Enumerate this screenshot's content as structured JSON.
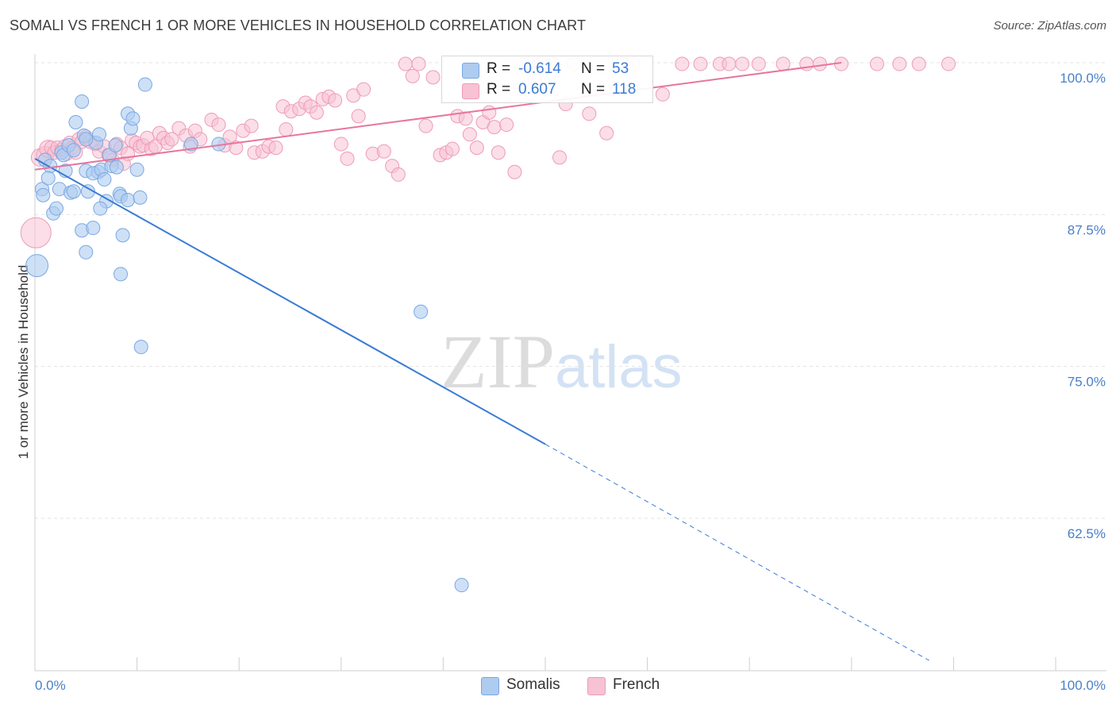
{
  "title": "SOMALI VS FRENCH 1 OR MORE VEHICLES IN HOUSEHOLD CORRELATION CHART",
  "source": "Source: ZipAtlas.com",
  "watermark": {
    "zip": "ZIP",
    "atlas": "atlas"
  },
  "legend_top": {
    "rows": [
      {
        "r_label": "R =",
        "r_value": "-0.614",
        "n_label": "N =",
        "n_value": "53"
      },
      {
        "r_label": "R =",
        "r_value": "0.607",
        "n_label": "N =",
        "n_value": "118"
      }
    ]
  },
  "legend_bottom": [
    "Somalis",
    "French"
  ],
  "colors": {
    "somalis_fill": "#aecbf0",
    "somalis_stroke": "#7aa8e3",
    "somalis_line": "#3a7bd5",
    "french_fill": "#f7c2d3",
    "french_stroke": "#ee9bb8",
    "french_line": "#e8769a",
    "tick_label": "#4a7fc9",
    "grid": "#e3e3e3"
  },
  "chart_data": {
    "type": "scatter",
    "title": "SOMALI VS FRENCH 1 OR MORE VEHICLES IN HOUSEHOLD CORRELATION CHART",
    "xlabel": "",
    "ylabel": "1 or more Vehicles in Household",
    "xlim": [
      0,
      100
    ],
    "ylim": [
      50,
      100
    ],
    "x_tick_labels": [
      "0.0%",
      "100.0%"
    ],
    "y_ticks": [
      62.5,
      75.0,
      87.5,
      100.0
    ],
    "y_tick_labels": [
      "62.5%",
      "75.0%",
      "87.5%",
      "100.0%"
    ],
    "grid": true,
    "legend": "bottom",
    "series": [
      {
        "name": "Somalis",
        "r": -0.614,
        "n": 53,
        "trend": {
          "x": [
            0,
            50
          ],
          "y": [
            92.1,
            68.6
          ],
          "dashed_to": [
            87.6,
            50.8
          ]
        },
        "points": [
          [
            0.2,
            83.3
          ],
          [
            0.7,
            89.6
          ],
          [
            0.8,
            89.1
          ],
          [
            1.0,
            92.0
          ],
          [
            1.5,
            91.5
          ],
          [
            1.3,
            90.5
          ],
          [
            1.8,
            87.6
          ],
          [
            2.1,
            88.0
          ],
          [
            2.4,
            89.6
          ],
          [
            2.6,
            92.6
          ],
          [
            3.0,
            91.1
          ],
          [
            2.8,
            92.4
          ],
          [
            3.5,
            89.3
          ],
          [
            3.3,
            93.2
          ],
          [
            4.0,
            95.1
          ],
          [
            3.8,
            92.8
          ],
          [
            4.6,
            96.8
          ],
          [
            3.8,
            89.4
          ],
          [
            4.6,
            86.2
          ],
          [
            5.0,
            91.1
          ],
          [
            5.2,
            89.4
          ],
          [
            4.8,
            94.0
          ],
          [
            6.2,
            91.0
          ],
          [
            6.0,
            93.4
          ],
          [
            6.3,
            94.1
          ],
          [
            5.7,
            90.9
          ],
          [
            5.0,
            93.7
          ],
          [
            7.0,
            88.6
          ],
          [
            6.5,
            91.2
          ],
          [
            6.8,
            90.4
          ],
          [
            7.5,
            91.5
          ],
          [
            6.4,
            88.0
          ],
          [
            5.7,
            86.4
          ],
          [
            5.0,
            84.4
          ],
          [
            7.3,
            92.4
          ],
          [
            7.9,
            93.2
          ],
          [
            8.0,
            91.4
          ],
          [
            8.3,
            89.2
          ],
          [
            8.4,
            89.0
          ],
          [
            8.4,
            82.6
          ],
          [
            8.6,
            85.8
          ],
          [
            9.1,
            88.7
          ],
          [
            9.1,
            95.8
          ],
          [
            9.4,
            94.6
          ],
          [
            9.6,
            95.4
          ],
          [
            10.0,
            91.2
          ],
          [
            10.3,
            88.9
          ],
          [
            10.4,
            76.6
          ],
          [
            10.8,
            98.2
          ],
          [
            15.3,
            93.3
          ],
          [
            18.0,
            93.3
          ],
          [
            37.8,
            79.5
          ],
          [
            41.8,
            57.0
          ]
        ]
      },
      {
        "name": "French",
        "r": 0.607,
        "n": 118,
        "trend": {
          "x": [
            0,
            79
          ],
          "y": [
            91.2,
            100.0
          ]
        },
        "points": [
          [
            0.1,
            86.0
          ],
          [
            0.5,
            92.2
          ],
          [
            1.0,
            92.4
          ],
          [
            1.3,
            92.9
          ],
          [
            1.6,
            93.0
          ],
          [
            1.9,
            92.6
          ],
          [
            2.2,
            93.0
          ],
          [
            2.6,
            92.8
          ],
          [
            2.9,
            93.1
          ],
          [
            3.1,
            92.5
          ],
          [
            3.4,
            93.4
          ],
          [
            3.7,
            93.0
          ],
          [
            4.0,
            92.6
          ],
          [
            4.3,
            93.7
          ],
          [
            4.6,
            93.5
          ],
          [
            5.0,
            93.9
          ],
          [
            5.4,
            93.5
          ],
          [
            5.9,
            93.3
          ],
          [
            6.3,
            92.7
          ],
          [
            6.8,
            93.1
          ],
          [
            7.2,
            92.4
          ],
          [
            7.6,
            92.0
          ],
          [
            8.0,
            93.3
          ],
          [
            8.4,
            93.0
          ],
          [
            8.7,
            91.7
          ],
          [
            9.1,
            92.5
          ],
          [
            9.5,
            93.6
          ],
          [
            9.9,
            93.4
          ],
          [
            10.3,
            93.1
          ],
          [
            10.6,
            93.2
          ],
          [
            11.0,
            93.8
          ],
          [
            11.4,
            92.9
          ],
          [
            11.8,
            93.1
          ],
          [
            12.2,
            94.2
          ],
          [
            12.6,
            93.8
          ],
          [
            13.0,
            93.4
          ],
          [
            13.4,
            93.7
          ],
          [
            14.1,
            94.6
          ],
          [
            14.8,
            94.0
          ],
          [
            15.2,
            93.1
          ],
          [
            15.7,
            94.4
          ],
          [
            16.2,
            93.7
          ],
          [
            17.3,
            95.3
          ],
          [
            18.0,
            94.9
          ],
          [
            18.6,
            93.2
          ],
          [
            19.1,
            93.9
          ],
          [
            19.7,
            93.0
          ],
          [
            20.4,
            94.4
          ],
          [
            21.2,
            94.8
          ],
          [
            21.5,
            92.6
          ],
          [
            22.3,
            92.7
          ],
          [
            22.9,
            93.1
          ],
          [
            23.6,
            93.0
          ],
          [
            24.3,
            96.4
          ],
          [
            24.6,
            94.5
          ],
          [
            25.1,
            96.0
          ],
          [
            25.9,
            96.2
          ],
          [
            26.5,
            96.7
          ],
          [
            27.0,
            96.4
          ],
          [
            27.6,
            95.9
          ],
          [
            28.2,
            97.0
          ],
          [
            28.8,
            97.2
          ],
          [
            29.4,
            96.9
          ],
          [
            30.0,
            93.3
          ],
          [
            30.6,
            92.1
          ],
          [
            31.2,
            97.3
          ],
          [
            31.7,
            95.6
          ],
          [
            32.2,
            97.8
          ],
          [
            33.1,
            92.5
          ],
          [
            34.2,
            92.7
          ],
          [
            35.0,
            91.5
          ],
          [
            35.6,
            90.8
          ],
          [
            36.3,
            99.9
          ],
          [
            37.0,
            98.9
          ],
          [
            37.6,
            99.9
          ],
          [
            38.3,
            94.8
          ],
          [
            39.0,
            98.8
          ],
          [
            39.7,
            92.4
          ],
          [
            40.3,
            92.6
          ],
          [
            40.9,
            92.9
          ],
          [
            41.4,
            95.6
          ],
          [
            42.2,
            95.4
          ],
          [
            42.6,
            94.1
          ],
          [
            43.3,
            93.0
          ],
          [
            43.9,
            95.1
          ],
          [
            44.5,
            95.9
          ],
          [
            45.0,
            94.7
          ],
          [
            45.4,
            92.6
          ],
          [
            46.2,
            94.9
          ],
          [
            47.0,
            91.0
          ],
          [
            47.6,
            97.9
          ],
          [
            48.3,
            99.9
          ],
          [
            49.0,
            98.6
          ],
          [
            49.6,
            99.9
          ],
          [
            50.2,
            97.8
          ],
          [
            50.7,
            99.9
          ],
          [
            51.4,
            92.2
          ],
          [
            52.0,
            96.6
          ],
          [
            52.8,
            99.9
          ],
          [
            54.3,
            95.8
          ],
          [
            56.0,
            94.2
          ],
          [
            57.5,
            99.9
          ],
          [
            58.6,
            99.9
          ],
          [
            61.5,
            97.4
          ],
          [
            63.4,
            99.9
          ],
          [
            65.2,
            99.9
          ],
          [
            67.1,
            99.9
          ],
          [
            68.0,
            99.9
          ],
          [
            69.3,
            99.9
          ],
          [
            70.9,
            99.9
          ],
          [
            73.3,
            99.9
          ],
          [
            75.6,
            99.9
          ],
          [
            76.9,
            99.9
          ],
          [
            79.0,
            99.9
          ],
          [
            82.5,
            99.9
          ],
          [
            84.7,
            99.9
          ],
          [
            86.6,
            99.9
          ],
          [
            89.5,
            99.9
          ]
        ]
      }
    ]
  }
}
